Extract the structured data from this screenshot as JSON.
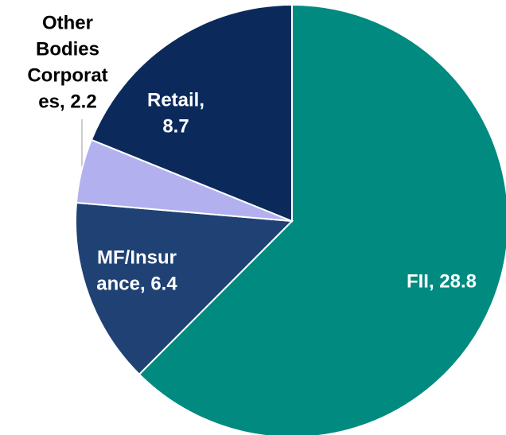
{
  "chart_data": {
    "type": "pie",
    "values": [
      28.8,
      6.4,
      2.2,
      8.7
    ],
    "value_labels": [
      [
        "FII, 28.8"
      ],
      [
        "MF/Insur",
        "ance, 6.4"
      ],
      [
        "Other",
        "Bodies",
        "Corporat",
        "es, 2.2"
      ],
      [
        "Retail,",
        "8.7"
      ]
    ],
    "colors": [
      "#008a80",
      "#1f4174",
      "#b3b0ef",
      "#0b2a5b"
    ]
  }
}
